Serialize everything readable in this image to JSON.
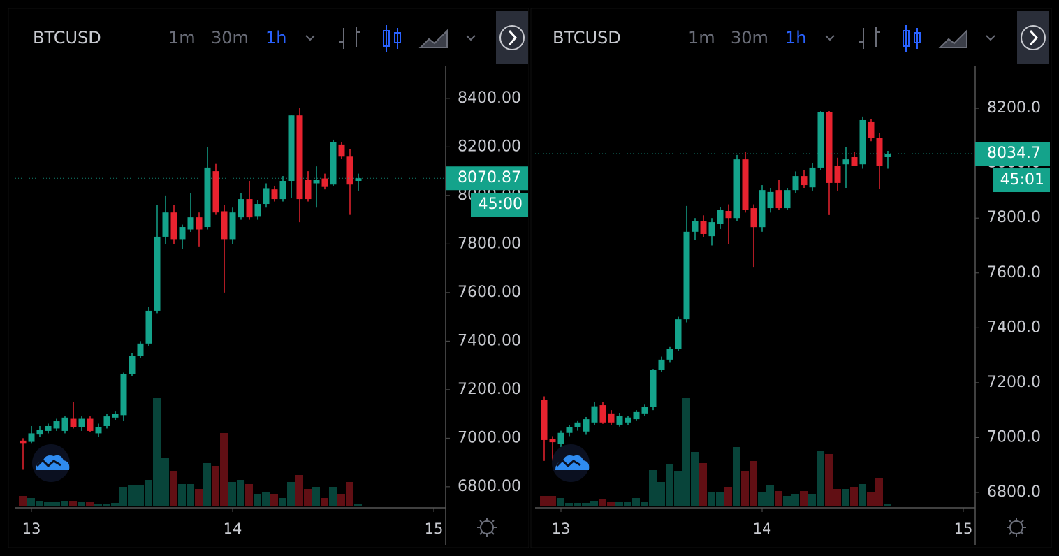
{
  "chart_data": [
    {
      "type": "candlestick",
      "symbol": "BTCUSD",
      "intervals": [
        "1m",
        "30m",
        "1h"
      ],
      "selected": "1h",
      "countdown": "45:00",
      "up_color": "#14a38b",
      "down_color": "#e8232f",
      "xticks": [
        "13",
        "14",
        "15"
      ],
      "ylim": [
        6719,
        8532
      ],
      "yticks": [
        {
          "value": 6800,
          "label": "6800.00"
        },
        {
          "value": 7000,
          "label": "7000.00"
        },
        {
          "value": 7200,
          "label": "7200.00"
        },
        {
          "value": 7400,
          "label": "7400.00"
        },
        {
          "value": 7600,
          "label": "7600.00"
        },
        {
          "value": 7800,
          "label": "7800.00"
        },
        {
          "value": 8000,
          "label": "8000.00"
        },
        {
          "value": 8200,
          "label": "8200.00"
        },
        {
          "value": 8400,
          "label": "8400.00"
        }
      ],
      "ohlc": [
        [
          6990,
          7000,
          6870,
          6980
        ],
        [
          6985,
          7050,
          6980,
          7020
        ],
        [
          7015,
          7050,
          7005,
          7035
        ],
        [
          7030,
          7060,
          7020,
          7050
        ],
        [
          7040,
          7080,
          7030,
          7070
        ],
        [
          7030,
          7090,
          7020,
          7085
        ],
        [
          7080,
          7150,
          7040,
          7045
        ],
        [
          7045,
          7090,
          7030,
          7080
        ],
        [
          7080,
          7090,
          7025,
          7030
        ],
        [
          7020,
          7060,
          7005,
          7045
        ],
        [
          7050,
          7100,
          7040,
          7090
        ],
        [
          7085,
          7110,
          7075,
          7100
        ],
        [
          7095,
          7270,
          7070,
          7265
        ],
        [
          7265,
          7350,
          7255,
          7340
        ],
        [
          7340,
          7400,
          7330,
          7390
        ],
        [
          7390,
          7540,
          7380,
          7525
        ],
        [
          7525,
          7960,
          7515,
          7830
        ],
        [
          7830,
          8000,
          7800,
          7930
        ],
        [
          7930,
          7960,
          7800,
          7820
        ],
        [
          7820,
          7880,
          7780,
          7870
        ],
        [
          7860,
          8010,
          7850,
          7910
        ],
        [
          7910,
          7930,
          7790,
          7860
        ],
        [
          7870,
          8200,
          7860,
          8115
        ],
        [
          8100,
          8130,
          7920,
          7930
        ],
        [
          7935,
          7960,
          7600,
          7820
        ],
        [
          7820,
          7950,
          7800,
          7930
        ],
        [
          7910,
          8010,
          7900,
          7985
        ],
        [
          7985,
          8060,
          7900,
          7910
        ],
        [
          7915,
          7980,
          7900,
          7965
        ],
        [
          7965,
          8050,
          7950,
          8030
        ],
        [
          8025,
          8040,
          7975,
          7985
        ],
        [
          7985,
          8080,
          7975,
          8060
        ],
        [
          8060,
          8330,
          7990,
          8330
        ],
        [
          8330,
          8360,
          7890,
          7985
        ],
        [
          8065,
          8100,
          7975,
          7985
        ],
        [
          8050,
          8120,
          7950,
          8065
        ],
        [
          8070,
          8090,
          8025,
          8035
        ],
        [
          8045,
          8230,
          8040,
          8220
        ],
        [
          8210,
          8220,
          8150,
          8160
        ],
        [
          8160,
          8190,
          7920,
          8045
        ],
        [
          8060,
          8090,
          8020,
          8070.87
        ]
      ],
      "volume": [
        15,
        12,
        8,
        6,
        6,
        8,
        8,
        6,
        6,
        4,
        4,
        5,
        28,
        30,
        30,
        38,
        155,
        70,
        50,
        32,
        32,
        25,
        62,
        58,
        105,
        35,
        38,
        32,
        18,
        20,
        18,
        12,
        35,
        45,
        25,
        28,
        12,
        28,
        18,
        35,
        3
      ]
    },
    {
      "type": "candlestick",
      "symbol": "BTCUSD",
      "intervals": [
        "1m",
        "30m",
        "1h"
      ],
      "selected": "1h",
      "countdown": "45:01",
      "up_color": "#14a38b",
      "down_color": "#e8232f",
      "xticks": [
        "13",
        "14",
        "15"
      ],
      "ylim": [
        6749,
        8353
      ],
      "yticks": [
        {
          "value": 6800,
          "label": "6800.0"
        },
        {
          "value": 7000,
          "label": "7000.0"
        },
        {
          "value": 7200,
          "label": "7200.0"
        },
        {
          "value": 7400,
          "label": "7400.0"
        },
        {
          "value": 7600,
          "label": "7600.0"
        },
        {
          "value": 7800,
          "label": "7800.0"
        },
        {
          "value": 8000,
          "label": "8000.0"
        },
        {
          "value": 8200,
          "label": "8200.0"
        }
      ],
      "ohlc": [
        [
          7136,
          7150,
          6915,
          6991
        ],
        [
          6996,
          7005,
          6915,
          6983
        ],
        [
          6978,
          7025,
          6965,
          7017
        ],
        [
          7017,
          7045,
          7005,
          7037
        ],
        [
          7037,
          7060,
          7025,
          7055
        ],
        [
          7022,
          7075,
          7010,
          7067
        ],
        [
          7055,
          7131,
          7045,
          7114
        ],
        [
          7118,
          7130,
          7050,
          7055
        ],
        [
          7088,
          7100,
          7045,
          7055
        ],
        [
          7047,
          7090,
          7040,
          7080
        ],
        [
          7055,
          7080,
          7045,
          7073
        ],
        [
          7067,
          7100,
          7060,
          7093
        ],
        [
          7088,
          7120,
          7080,
          7111
        ],
        [
          7111,
          7250,
          7100,
          7246
        ],
        [
          7246,
          7295,
          7240,
          7284
        ],
        [
          7284,
          7330,
          7275,
          7322
        ],
        [
          7322,
          7440,
          7315,
          7431
        ],
        [
          7431,
          7844,
          7420,
          7750
        ],
        [
          7750,
          7800,
          7720,
          7790
        ],
        [
          7790,
          7810,
          7730,
          7742
        ],
        [
          7734,
          7800,
          7700,
          7785
        ],
        [
          7780,
          7840,
          7760,
          7831
        ],
        [
          7826,
          7850,
          7704,
          7800
        ],
        [
          7800,
          8030,
          7790,
          8014
        ],
        [
          8014,
          8040,
          7820,
          7831
        ],
        [
          7836,
          7850,
          7622,
          7767
        ],
        [
          7767,
          7920,
          7750,
          7902
        ],
        [
          7836,
          7910,
          7820,
          7895
        ],
        [
          7902,
          7940,
          7830,
          7836
        ],
        [
          7836,
          7910,
          7830,
          7902
        ],
        [
          7902,
          7970,
          7890,
          7953
        ],
        [
          7953,
          7975,
          7910,
          7920
        ],
        [
          7912,
          8000,
          7900,
          7984
        ],
        [
          7984,
          8190,
          7975,
          8187
        ],
        [
          8187,
          8190,
          7811,
          7928
        ],
        [
          7991,
          8020,
          7900,
          7928
        ],
        [
          7996,
          8060,
          7910,
          8014
        ],
        [
          8022,
          8040,
          7990,
          7991
        ],
        [
          7996,
          8170,
          7980,
          8157
        ],
        [
          8152,
          8160,
          8080,
          8091
        ],
        [
          8091,
          8110,
          7907,
          7991
        ],
        [
          8022,
          8045,
          7980,
          8034.7
        ]
      ],
      "volume": [
        15,
        15,
        12,
        5,
        5,
        5,
        8,
        10,
        6,
        6,
        6,
        12,
        6,
        52,
        35,
        60,
        50,
        155,
        78,
        62,
        20,
        20,
        28,
        85,
        50,
        65,
        20,
        30,
        22,
        15,
        18,
        22,
        18,
        80,
        75,
        25,
        25,
        28,
        32,
        20,
        40,
        3
      ]
    }
  ]
}
